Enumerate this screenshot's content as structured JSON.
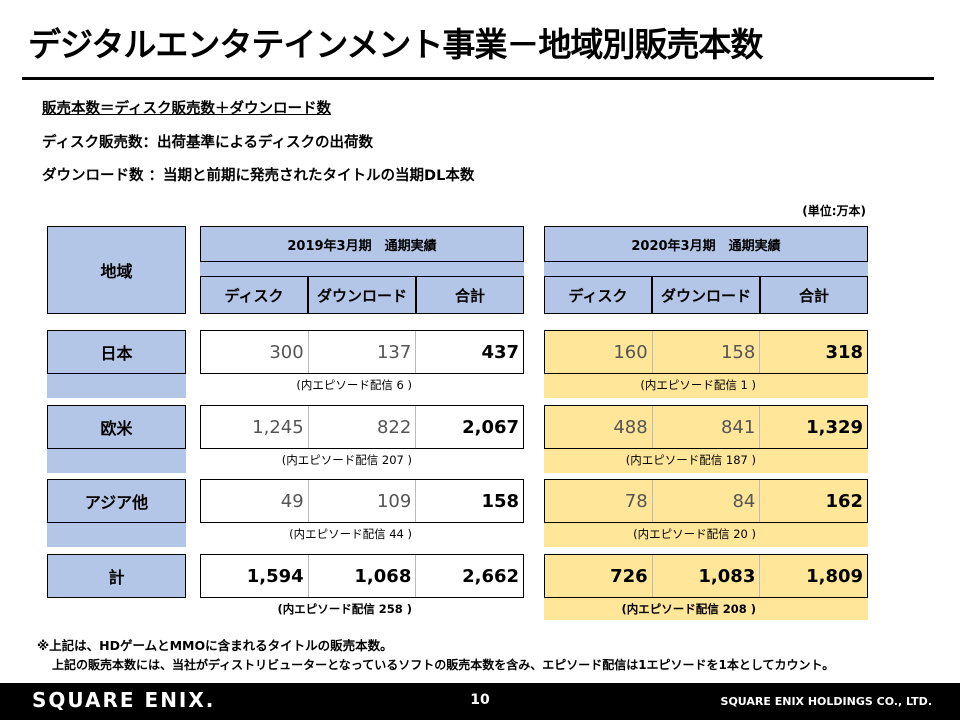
{
  "title": "デジタルエンタテインメント事業－地域別販売本数",
  "notes": [
    "販売本数＝ディスク販売数＋ダウンロード数",
    "ディスク販売数：出荷基準によるディスクの出荷数",
    "ダウンロード数 ：当期と前期に発売されたタイトルの当期DL本数"
  ],
  "unit": "(単位:万本)",
  "table": {
    "region_header": "地域",
    "periods": [
      "2019年3月期　通期実績",
      "2020年3月期　通期実績"
    ],
    "columns": [
      "ディスク",
      "ダウンロード",
      "合計"
    ],
    "rows": [
      {
        "region": "日本",
        "fy2019": [
          "300",
          "137",
          "437"
        ],
        "fy2019_ep": "(内エピソード配信 6 )",
        "fy2020": [
          "160",
          "158",
          "318"
        ],
        "fy2020_ep": "(内エピソード配信 1 )"
      },
      {
        "region": "欧米",
        "fy2019": [
          "1,245",
          "822",
          "2,067"
        ],
        "fy2019_ep": "(内エピソード配信 207 )",
        "fy2020": [
          "488",
          "841",
          "1,329"
        ],
        "fy2020_ep": "(内エピソード配信 187 )"
      },
      {
        "region": "アジア他",
        "fy2019": [
          "49",
          "109",
          "158"
        ],
        "fy2019_ep": "(内エピソード配信 44 )",
        "fy2020": [
          "78",
          "84",
          "162"
        ],
        "fy2020_ep": "(内エピソード配信 20 )"
      },
      {
        "region": "計",
        "fy2019": [
          "1,594",
          "1,068",
          "2,662"
        ],
        "fy2019_ep": "(内エピソード配信 258 )",
        "fy2020": [
          "726",
          "1,083",
          "1,809"
        ],
        "fy2020_ep": "(内エピソード配信 208 )"
      }
    ]
  },
  "footnotes": [
    "※上記は、HDゲームとMMOに含まれるタイトルの販売本数。",
    "上記の販売本数には、当社がディストリビューターとなっているソフトの販売本数を含み、エピソード配信は1エピソードを1本としてカウント。"
  ],
  "footer": {
    "logo": "SQUARE ENIX.",
    "page": "10",
    "company": "SQUARE ENIX HOLDINGS CO., LTD."
  },
  "colors": {
    "header_blue": "#b4c6e7",
    "highlight_yellow": "#ffe699"
  }
}
